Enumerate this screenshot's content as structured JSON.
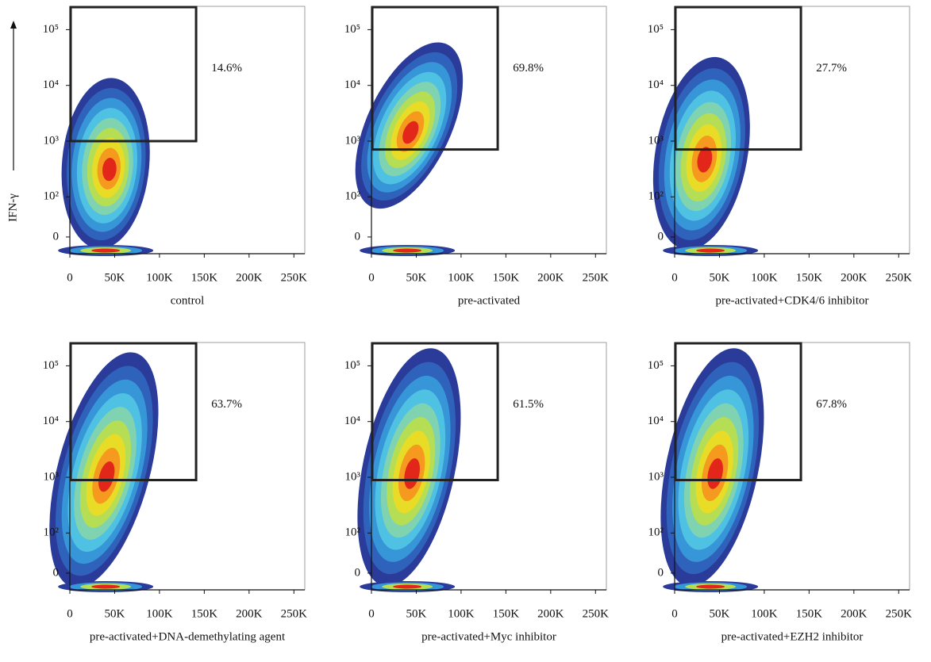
{
  "chart_data": [
    {
      "type": "density",
      "xlabel": "control",
      "ylabel": "IFN-γ",
      "gate": {
        "value": 14.6,
        "label": "14.6%"
      },
      "xlim": [
        0,
        262144
      ],
      "xticks": [
        0,
        {
          "value": 50000,
          "label": "50K"
        },
        {
          "value": 100000,
          "label": "100K"
        },
        {
          "value": 150000,
          "label": "150K"
        },
        {
          "value": 200000,
          "label": "200K"
        },
        {
          "value": 250000,
          "label": "250K"
        }
      ],
      "ylim": [
        0,
        262144
      ],
      "yscale": "biexponential",
      "yticks": [
        0,
        {
          "value": 100,
          "label": "10²"
        },
        {
          "value": 1000,
          "label": "10³"
        },
        {
          "value": 10000,
          "label": "10⁴"
        },
        {
          "value": 100000,
          "label": "10⁵"
        }
      ]
    },
    {
      "type": "density",
      "xlabel": "pre-activated",
      "gate": {
        "value": 69.8,
        "label": "69.8%"
      },
      "xlim": [
        0,
        262144
      ],
      "xticks": [
        0,
        {
          "value": 50000,
          "label": "50K"
        },
        {
          "value": 100000,
          "label": "100K"
        },
        {
          "value": 150000,
          "label": "150K"
        },
        {
          "value": 200000,
          "label": "200K"
        },
        {
          "value": 250000,
          "label": "250K"
        }
      ],
      "ylim": [
        0,
        262144
      ],
      "yscale": "biexponential",
      "yticks": [
        0,
        {
          "value": 100,
          "label": "10²"
        },
        {
          "value": 1000,
          "label": "10³"
        },
        {
          "value": 10000,
          "label": "10⁴"
        },
        {
          "value": 100000,
          "label": "10⁵"
        }
      ]
    },
    {
      "type": "density",
      "xlabel": "pre-activated+CDK4/6 inhibitor",
      "gate": {
        "value": 27.7,
        "label": "27.7%"
      },
      "xlim": [
        0,
        262144
      ],
      "xticks": [
        0,
        {
          "value": 50000,
          "label": "50K"
        },
        {
          "value": 100000,
          "label": "100K"
        },
        {
          "value": 150000,
          "label": "150K"
        },
        {
          "value": 200000,
          "label": "200K"
        },
        {
          "value": 250000,
          "label": "250K"
        }
      ],
      "ylim": [
        0,
        262144
      ],
      "yscale": "biexponential",
      "yticks": [
        0,
        {
          "value": 100,
          "label": "10²"
        },
        {
          "value": 1000,
          "label": "10³"
        },
        {
          "value": 10000,
          "label": "10⁴"
        },
        {
          "value": 100000,
          "label": "10⁵"
        }
      ]
    },
    {
      "type": "density",
      "xlabel": "pre-activated+DNA-demethylating agent",
      "gate": {
        "value": 63.7,
        "label": "63.7%"
      },
      "xlim": [
        0,
        262144
      ],
      "xticks": [
        0,
        {
          "value": 50000,
          "label": "50K"
        },
        {
          "value": 100000,
          "label": "100K"
        },
        {
          "value": 150000,
          "label": "150K"
        },
        {
          "value": 200000,
          "label": "200K"
        },
        {
          "value": 250000,
          "label": "250K"
        }
      ],
      "ylim": [
        0,
        262144
      ],
      "yscale": "biexponential",
      "yticks": [
        0,
        {
          "value": 100,
          "label": "10²"
        },
        {
          "value": 1000,
          "label": "10³"
        },
        {
          "value": 10000,
          "label": "10⁴"
        },
        {
          "value": 100000,
          "label": "10⁵"
        }
      ]
    },
    {
      "type": "density",
      "xlabel": "pre-activated+Myc inhibitor",
      "gate": {
        "value": 61.5,
        "label": "61.5%"
      },
      "xlim": [
        0,
        262144
      ],
      "xticks": [
        0,
        {
          "value": 50000,
          "label": "50K"
        },
        {
          "value": 100000,
          "label": "100K"
        },
        {
          "value": 150000,
          "label": "150K"
        },
        {
          "value": 200000,
          "label": "200K"
        },
        {
          "value": 250000,
          "label": "250K"
        }
      ],
      "ylim": [
        0,
        262144
      ],
      "yscale": "biexponential",
      "yticks": [
        0,
        {
          "value": 100,
          "label": "10²"
        },
        {
          "value": 1000,
          "label": "10³"
        },
        {
          "value": 10000,
          "label": "10⁴"
        },
        {
          "value": 100000,
          "label": "10⁵"
        }
      ]
    },
    {
      "type": "density",
      "xlabel": "pre-activated+EZH2 inhibitor",
      "gate": {
        "value": 67.8,
        "label": "67.8%"
      },
      "xlim": [
        0,
        262144
      ],
      "xticks": [
        0,
        {
          "value": 50000,
          "label": "50K"
        },
        {
          "value": 100000,
          "label": "100K"
        },
        {
          "value": 150000,
          "label": "150K"
        },
        {
          "value": 200000,
          "label": "200K"
        },
        {
          "value": 250000,
          "label": "250K"
        }
      ],
      "ylim": [
        0,
        262144
      ],
      "yscale": "biexponential",
      "yticks": [
        0,
        {
          "value": 100,
          "label": "10²"
        },
        {
          "value": 1000,
          "label": "10³"
        },
        {
          "value": 10000,
          "label": "10⁴"
        },
        {
          "value": 100000,
          "label": "10⁵"
        }
      ]
    }
  ]
}
